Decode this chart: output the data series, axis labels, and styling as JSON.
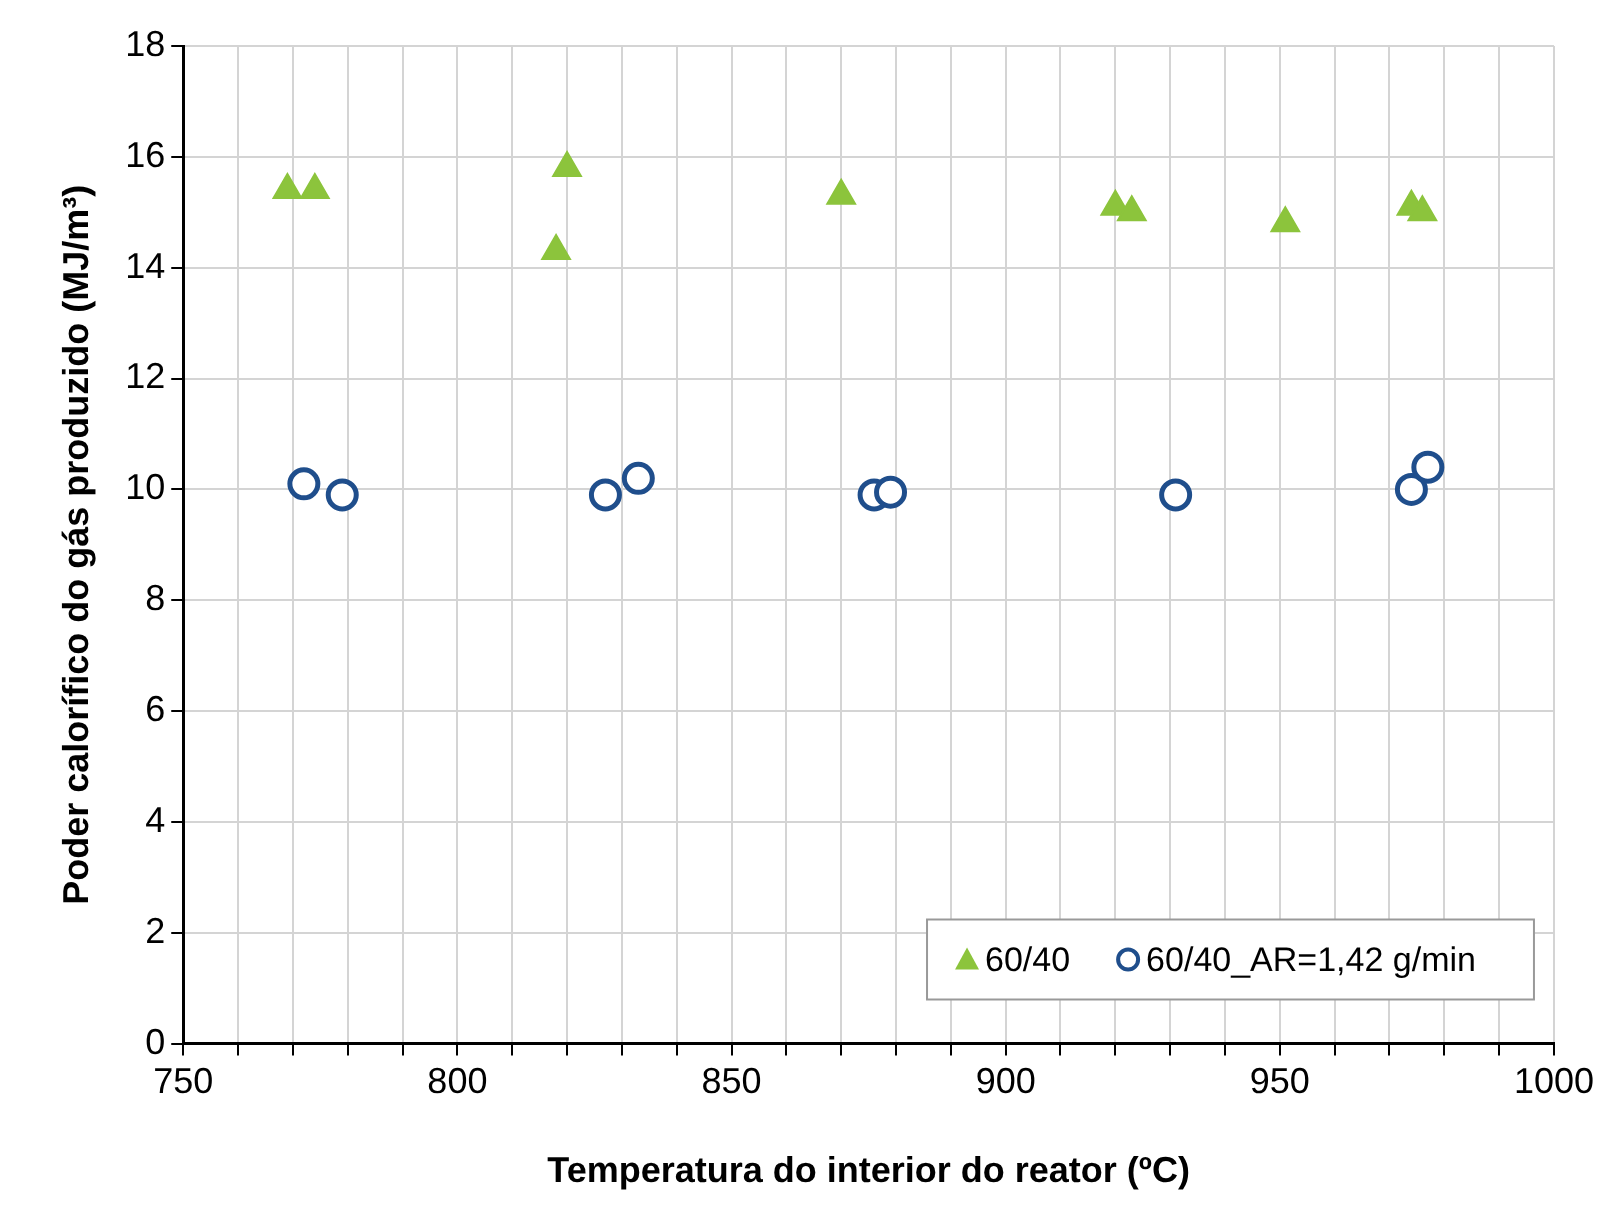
{
  "chart_data": {
    "type": "scatter",
    "xlabel": "Temperatura do interior do reator (ºC)",
    "ylabel": "Poder calorífico do gás produzido (MJ/m³)",
    "series": [
      {
        "name": "60/40",
        "color": "#8cc43c",
        "marker": "triangle",
        "x": [
          769,
          774,
          818,
          820,
          870,
          920,
          923,
          951,
          974,
          976
        ],
        "values": [
          15.4,
          15.4,
          14.3,
          15.8,
          15.3,
          15.1,
          15.0,
          14.8,
          15.1,
          15.0
        ]
      },
      {
        "name": "60/40_AR=1,42 g/min",
        "color": "#1f4e8c",
        "marker": "circle",
        "x": [
          772,
          779,
          827,
          833,
          876,
          879,
          931,
          974,
          977
        ],
        "values": [
          10.1,
          9.9,
          9.9,
          10.2,
          9.9,
          9.95,
          9.9,
          10.0,
          10.4
        ]
      }
    ],
    "xlim": [
      750,
      1000
    ],
    "xticks": [
      750,
      {
        "value": 760,
        "label": null
      },
      {
        "value": 770,
        "label": null
      },
      {
        "value": 780,
        "label": null
      },
      {
        "value": 790,
        "label": null
      },
      800,
      {
        "value": 810,
        "label": null
      },
      {
        "value": 820,
        "label": null
      },
      {
        "value": 830,
        "label": null
      },
      {
        "value": 840,
        "label": null
      },
      850,
      {
        "value": 860,
        "label": null
      },
      {
        "value": 870,
        "label": null
      },
      {
        "value": 880,
        "label": null
      },
      {
        "value": 890,
        "label": null
      },
      900,
      {
        "value": 910,
        "label": null
      },
      {
        "value": 920,
        "label": null
      },
      {
        "value": 930,
        "label": null
      },
      {
        "value": 940,
        "label": null
      },
      950,
      {
        "value": 960,
        "label": null
      },
      {
        "value": 970,
        "label": null
      },
      {
        "value": 980,
        "label": null
      },
      {
        "value": 990,
        "label": null
      },
      1000
    ],
    "ylim": [
      0,
      18
    ],
    "yticks": [
      0,
      2,
      4,
      6,
      8,
      10,
      12,
      14,
      16,
      18
    ],
    "grid": true,
    "legend": "bottom right"
  }
}
